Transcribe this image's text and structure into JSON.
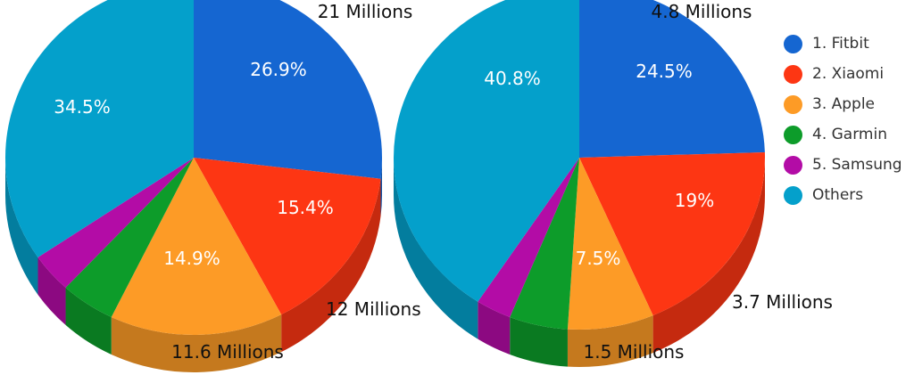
{
  "chart_data": [
    {
      "type": "pie",
      "categories": [
        "1. Fitbit",
        "2. Xiaomi",
        "3. Apple",
        "4. Garmin",
        "5. Samsung",
        "Others"
      ],
      "values": [
        26.9,
        15.4,
        14.9,
        4.7,
        3.6,
        34.5
      ],
      "data_labels": [
        "26.9%",
        "15.4%",
        "14.9%",
        "",
        "",
        "34.5%"
      ],
      "annotations": [
        "21 Millions",
        "12 Millions",
        "11.6 Millions"
      ]
    },
    {
      "type": "pie",
      "categories": [
        "1. Fitbit",
        "2. Xiaomi",
        "3. Apple",
        "4. Garmin",
        "5. Samsung",
        "Others"
      ],
      "values": [
        24.5,
        19.0,
        7.5,
        5.1,
        3.1,
        40.8
      ],
      "data_labels": [
        "24.5%",
        "19%",
        "7.5%",
        "",
        "",
        "40.8%"
      ],
      "annotations": [
        "4.8 Millions",
        "3.7 Millions",
        "1.5 Millions"
      ]
    }
  ],
  "legend": {
    "position": "right",
    "items": [
      {
        "label": "1. Fitbit",
        "color": "#1566d1"
      },
      {
        "label": "2. Xiaomi",
        "color": "#fd3613"
      },
      {
        "label": "3. Apple",
        "color": "#fd9b26"
      },
      {
        "label": "4. Garmin",
        "color": "#0d9c2a"
      },
      {
        "label": "5. Samsung",
        "color": "#b30ca6"
      },
      {
        "label": "Others",
        "color": "#04a0cb"
      }
    ]
  },
  "colors": [
    "#1566d1",
    "#fd3613",
    "#fd9b26",
    "#0d9c2a",
    "#b30ca6",
    "#04a0cb"
  ]
}
